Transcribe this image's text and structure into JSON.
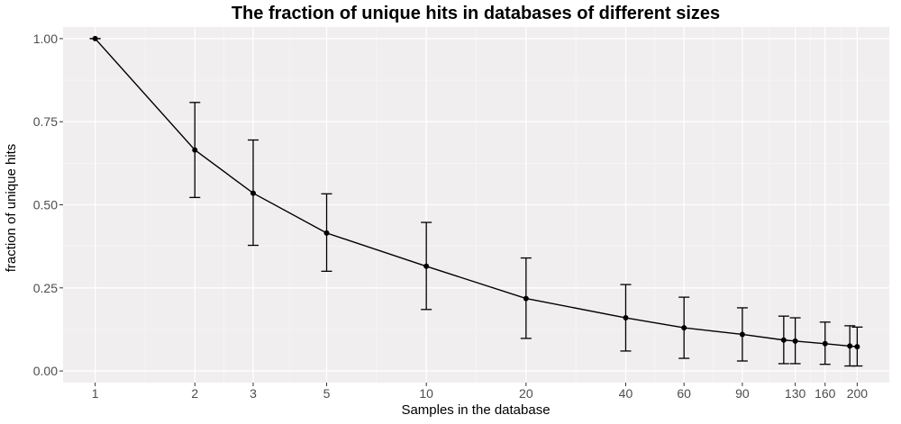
{
  "chart_data": {
    "type": "line",
    "title": "The fraction of unique hits in databases of different sizes",
    "xlabel": "Samples in the database",
    "ylabel": "fraction of unique hits",
    "x_scale": "log10",
    "xlim": [
      0.8,
      250
    ],
    "ylim": [
      -0.035,
      1.035
    ],
    "x_ticks": [
      1,
      2,
      3,
      5,
      10,
      20,
      40,
      60,
      90,
      130,
      160,
      200
    ],
    "x_tick_labels": [
      "1",
      "2",
      "3",
      "5",
      "10",
      "20",
      "40",
      "60",
      "90",
      "130",
      "160",
      "200"
    ],
    "y_ticks": [
      0,
      0.25,
      0.5,
      0.75,
      1.0
    ],
    "y_tick_labels": [
      "0.00",
      "0.25",
      "0.50",
      "0.75",
      "1.00"
    ],
    "grid": true,
    "series": [
      {
        "x": [
          1,
          2,
          3,
          5,
          10,
          20,
          40,
          60,
          90,
          120,
          130,
          160,
          190,
          200
        ],
        "y": [
          1.0,
          0.665,
          0.535,
          0.415,
          0.315,
          0.218,
          0.16,
          0.13,
          0.11,
          0.093,
          0.09,
          0.082,
          0.075,
          0.073
        ],
        "err_low": [
          1.0,
          0.522,
          0.378,
          0.3,
          0.185,
          0.098,
          0.06,
          0.038,
          0.03,
          0.022,
          0.022,
          0.02,
          0.015,
          0.015
        ],
        "err_high": [
          1.0,
          0.808,
          0.695,
          0.533,
          0.447,
          0.34,
          0.26,
          0.222,
          0.19,
          0.165,
          0.16,
          0.147,
          0.136,
          0.132
        ]
      }
    ],
    "colors": {
      "panel": "#f0eeef",
      "grid_major": "#ffffff",
      "grid_minor": "#f8f7f7",
      "line": "#000000"
    }
  }
}
